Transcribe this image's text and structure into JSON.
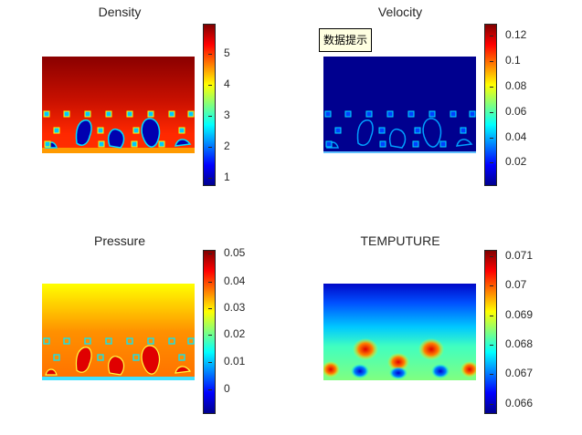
{
  "chart_data": [
    {
      "type": "heatmap",
      "title": "Density",
      "colormap": "jet",
      "colorbar_ticks": [
        "1",
        "2",
        "3",
        "4",
        "5"
      ],
      "colorbar_range": [
        0.75,
        5.9
      ]
    },
    {
      "type": "heatmap",
      "title": "Velocity",
      "colormap": "jet",
      "colorbar_ticks": [
        "0.02",
        "0.04",
        "0.06",
        "0.08",
        "0.1",
        "0.12"
      ],
      "colorbar_range": [
        0.0,
        0.128
      ]
    },
    {
      "type": "heatmap",
      "title": "Pressure",
      "colormap": "jet",
      "colorbar_ticks": [
        "0",
        "0.01",
        "0.02",
        "0.03",
        "0.04",
        "0.05"
      ],
      "colorbar_range": [
        -0.0065,
        0.0505
      ]
    },
    {
      "type": "heatmap",
      "title": "TEMPUTURE",
      "colormap": "jet",
      "colorbar_ticks": [
        "0.066",
        "0.067",
        "0.068",
        "0.069",
        "0.07",
        "0.071"
      ],
      "colorbar_range": [
        0.0657,
        0.0712
      ]
    }
  ],
  "tooltip": {
    "label": "数据提示"
  }
}
